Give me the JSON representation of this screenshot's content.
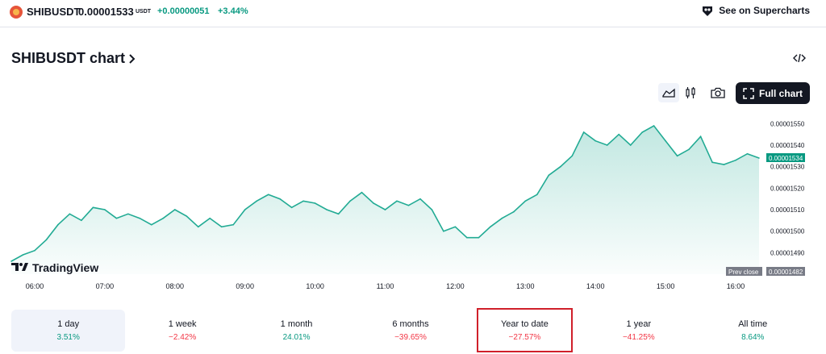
{
  "header": {
    "symbol": "SHIBUSDT",
    "price": "0.00001533",
    "currency": "USDT",
    "change_abs": "+0.00000051",
    "change_pct": "+3.44%",
    "supercharts_label": "See on Supercharts"
  },
  "chart_title": "SHIBUSDT chart",
  "toolbar": {
    "full_chart_label": "Full chart",
    "icons": [
      "area-chart-icon",
      "candles-icon",
      "camera-icon",
      "expand-icon"
    ]
  },
  "chart_data": {
    "type": "area",
    "x": [
      "05:40",
      "05:50",
      "06:00",
      "06:10",
      "06:20",
      "06:30",
      "06:40",
      "06:50",
      "07:00",
      "07:10",
      "07:20",
      "07:30",
      "07:40",
      "07:50",
      "08:00",
      "08:10",
      "08:20",
      "08:30",
      "08:40",
      "08:50",
      "09:00",
      "09:10",
      "09:20",
      "09:30",
      "09:40",
      "09:50",
      "10:00",
      "10:10",
      "10:20",
      "10:30",
      "10:40",
      "10:50",
      "11:00",
      "11:10",
      "11:20",
      "11:30",
      "11:40",
      "11:50",
      "12:00",
      "12:10",
      "12:20",
      "12:30",
      "12:40",
      "12:50",
      "13:00",
      "13:10",
      "13:20",
      "13:30",
      "13:40",
      "13:50",
      "14:00",
      "14:10",
      "14:20",
      "14:30",
      "14:40",
      "14:50",
      "15:00",
      "15:10",
      "15:20",
      "15:30",
      "15:40",
      "15:50",
      "16:00",
      "16:10",
      "16:20"
    ],
    "y": [
      1.486e-05,
      1.489e-05,
      1.491e-05,
      1.496e-05,
      1.503e-05,
      1.508e-05,
      1.505e-05,
      1.511e-05,
      1.51e-05,
      1.506e-05,
      1.508e-05,
      1.506e-05,
      1.503e-05,
      1.506e-05,
      1.51e-05,
      1.507e-05,
      1.502e-05,
      1.506e-05,
      1.502e-05,
      1.503e-05,
      1.51e-05,
      1.514e-05,
      1.517e-05,
      1.515e-05,
      1.511e-05,
      1.514e-05,
      1.513e-05,
      1.51e-05,
      1.508e-05,
      1.514e-05,
      1.518e-05,
      1.513e-05,
      1.51e-05,
      1.514e-05,
      1.512e-05,
      1.515e-05,
      1.51e-05,
      1.5e-05,
      1.502e-05,
      1.497e-05,
      1.497e-05,
      1.502e-05,
      1.506e-05,
      1.509e-05,
      1.514e-05,
      1.517e-05,
      1.526e-05,
      1.53e-05,
      1.535e-05,
      1.546e-05,
      1.542e-05,
      1.54e-05,
      1.545e-05,
      1.54e-05,
      1.546e-05,
      1.549e-05,
      1.542e-05,
      1.535e-05,
      1.538e-05,
      1.544e-05,
      1.532e-05,
      1.531e-05,
      1.533e-05,
      1.536e-05,
      1.534e-05
    ],
    "x_ticks": [
      "06:00",
      "07:00",
      "08:00",
      "09:00",
      "10:00",
      "11:00",
      "12:00",
      "13:00",
      "14:00",
      "15:00",
      "16:00"
    ],
    "y_ticks": [
      "0.00001550",
      "0.00001540",
      "0.00001530",
      "0.00001520",
      "0.00001510",
      "0.00001500",
      "0.00001490"
    ],
    "ylim": [
      1.48e-05,
      1.555e-05
    ],
    "current_price_label": "0.00001534",
    "prev_close_label": "Prev close",
    "prev_close_value": "0.00001482",
    "line_color": "#22ab94",
    "watermark": "TradingView"
  },
  "periods": [
    {
      "label": "1 day",
      "value": "3.51%",
      "direction": "pos",
      "selected": true
    },
    {
      "label": "1 week",
      "value": "−2.42%",
      "direction": "neg"
    },
    {
      "label": "1 month",
      "value": "24.01%",
      "direction": "pos"
    },
    {
      "label": "6 months",
      "value": "−39.65%",
      "direction": "neg"
    },
    {
      "label": "Year to date",
      "value": "−27.57%",
      "direction": "neg",
      "highlighted": true
    },
    {
      "label": "1 year",
      "value": "−41.25%",
      "direction": "neg"
    },
    {
      "label": "All time",
      "value": "8.64%",
      "direction": "pos"
    }
  ],
  "colors": {
    "positive": "#089981",
    "negative": "#f23645",
    "accent": "#131722"
  }
}
